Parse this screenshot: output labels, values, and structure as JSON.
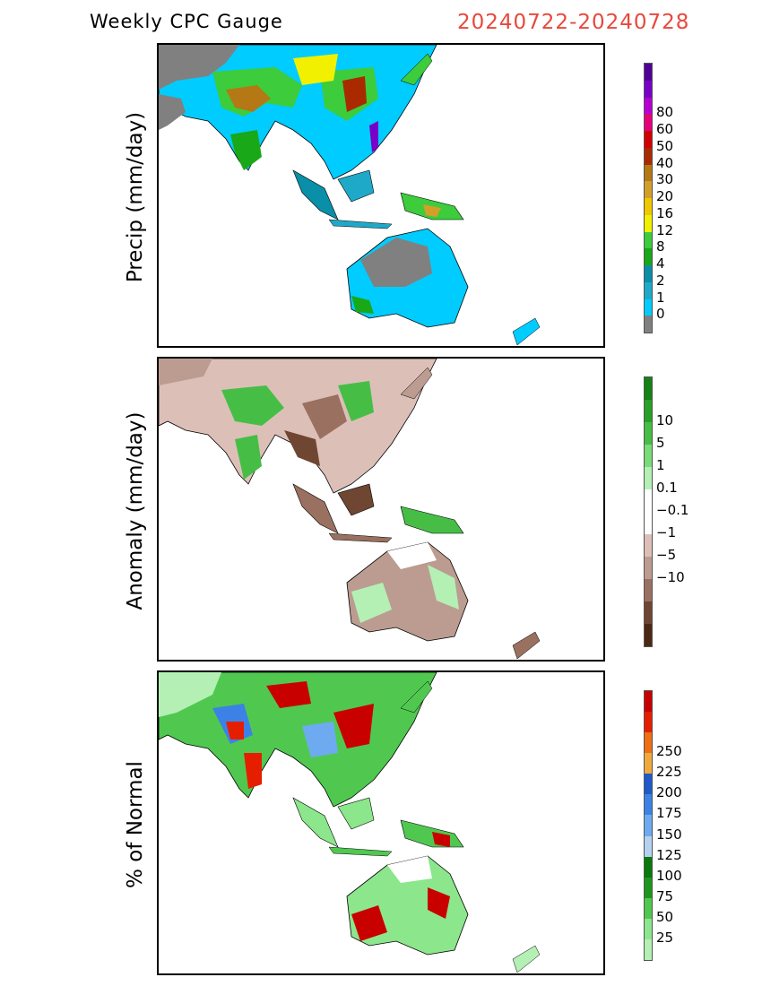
{
  "header": {
    "title": "Weekly CPC Gauge",
    "date_range": "20240722-20240728"
  },
  "panels": [
    {
      "ylabel": "Precip (mm/day)",
      "colorbar": {
        "colors": [
          "#808080",
          "#00ccff",
          "#1fa9c9",
          "#0a8fa8",
          "#18a818",
          "#3ccc3c",
          "#f0f000",
          "#f0c800",
          "#d2a028",
          "#b47814",
          "#aa2a00",
          "#d20000",
          "#e6007a",
          "#b400d2",
          "#7800c8",
          "#500096"
        ],
        "labels": [
          "0",
          "1",
          "2",
          "4",
          "8",
          "12",
          "16",
          "20",
          "30",
          "40",
          "50",
          "60",
          "80"
        ]
      }
    },
    {
      "ylabel": "Anomaly (mm/day)",
      "colorbar": {
        "colors": [
          "#4c2814",
          "#6e4632",
          "#9a7060",
          "#bc9c90",
          "#dcc0b8",
          "#ffffff",
          "#ffffff",
          "#b4f0b4",
          "#78dc78",
          "#46be46",
          "#28a028",
          "#148214"
        ],
        "labels": [
          "−10",
          "−5",
          "−1",
          "−0.1",
          "0.1",
          "1",
          "5",
          "10"
        ]
      }
    },
    {
      "ylabel": "% of Normal",
      "colorbar": {
        "colors": [
          "#b4f0b4",
          "#8ce68c",
          "#50c850",
          "#1e961e",
          "#0a780a",
          "#b4d2f0",
          "#6eaaf0",
          "#3c82e6",
          "#1e5ac8",
          "#f0aa3c",
          "#f06e14",
          "#e61e00",
          "#c80000"
        ],
        "labels": [
          "25",
          "50",
          "75",
          "100",
          "125",
          "150",
          "175",
          "200",
          "225",
          "250"
        ]
      }
    }
  ]
}
